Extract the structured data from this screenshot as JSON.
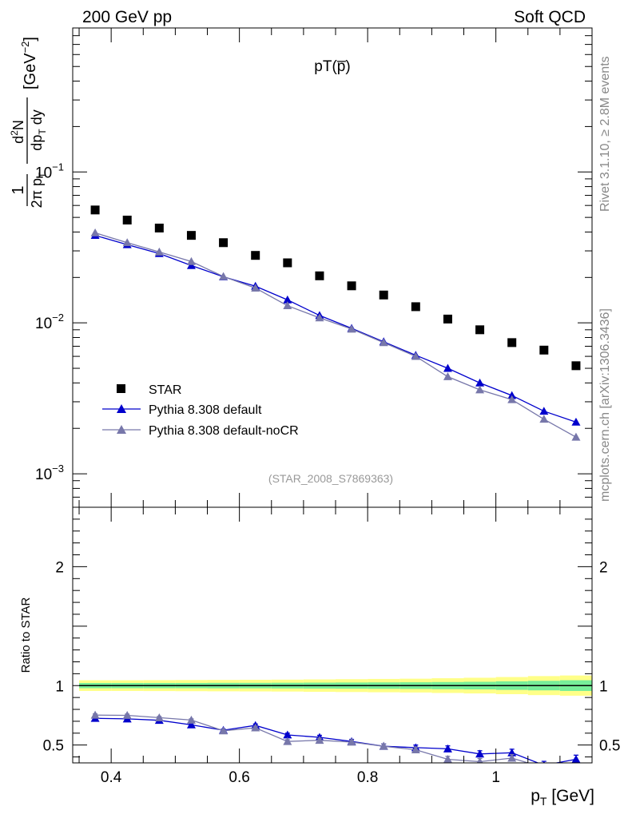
{
  "header": {
    "left": "200 GeV pp",
    "right": "Soft QCD"
  },
  "side_labels": {
    "rivet": "Rivet 3.1.10, ≥ 2.8M events",
    "mcplots": "mcplots.cern.ch [arXiv:1306.3436]"
  },
  "chart_data": [
    {
      "type": "scatter",
      "title": "pT(p̅)",
      "analysis_tag": "(STAR_2008_S7869363)",
      "ylabel": "1/(2π p_T) d²N/(dp_T dy) [GeV⁻²]",
      "xlim": [
        0.34,
        1.15
      ],
      "ylim": [
        0.0006,
        0.9
      ],
      "yscale": "log",
      "y_ticks": [
        {
          "value": 0.1,
          "base": "10",
          "exp": "−1"
        },
        {
          "value": 0.01,
          "base": "10",
          "exp": "−2"
        },
        {
          "value": 0.001,
          "base": "10",
          "exp": "−3"
        }
      ],
      "x": [
        0.375,
        0.425,
        0.475,
        0.525,
        0.575,
        0.625,
        0.675,
        0.725,
        0.775,
        0.825,
        0.875,
        0.925,
        0.975,
        1.025,
        1.075,
        1.125
      ],
      "legend_position": "bottom-left",
      "series": [
        {
          "name": "STAR",
          "marker": "square",
          "color": "#000000",
          "values": [
            0.056,
            0.048,
            0.0425,
            0.038,
            0.034,
            0.028,
            0.025,
            0.0205,
            0.0176,
            0.0153,
            0.0128,
            0.0106,
            0.009,
            0.0074,
            0.0066,
            0.0052
          ]
        },
        {
          "name": "Pythia 8.308 default",
          "marker": "triangle",
          "color": "#0000cc",
          "values": [
            0.038,
            0.033,
            0.0288,
            0.024,
            0.0202,
            0.0175,
            0.0142,
            0.0112,
            0.0092,
            0.0075,
            0.0061,
            0.005,
            0.004,
            0.0033,
            0.0026,
            0.0022
          ]
        },
        {
          "name": "Pythia 8.308 default-noCR",
          "marker": "triangle",
          "color": "#7777aa",
          "values": [
            0.0395,
            0.034,
            0.0295,
            0.0255,
            0.0203,
            0.017,
            0.013,
            0.0108,
            0.0091,
            0.0074,
            0.006,
            0.0044,
            0.0036,
            0.0031,
            0.0023,
            0.00175
          ]
        }
      ]
    },
    {
      "type": "scatter",
      "ylabel": "Ratio to STAR",
      "xlabel_base": "p",
      "xlabel_sub": "T",
      "xlabel_unit": " [GeV]",
      "xlim": [
        0.34,
        1.15
      ],
      "ylim": [
        0.35,
        2.5
      ],
      "y_ticks": [
        {
          "value": 0.5,
          "label": "0.5"
        },
        {
          "value": 1,
          "label": "1"
        },
        {
          "value": 2,
          "label": "2"
        }
      ],
      "x_ticks": [
        {
          "value": 0.4,
          "label": "0.4"
        },
        {
          "value": 0.6,
          "label": "0.6"
        },
        {
          "value": 0.8,
          "label": "0.8"
        },
        {
          "value": 1.0,
          "label": "1"
        }
      ],
      "x": [
        0.375,
        0.425,
        0.475,
        0.525,
        0.575,
        0.625,
        0.675,
        0.725,
        0.775,
        0.825,
        0.875,
        0.925,
        0.975,
        1.025,
        1.075,
        1.125
      ],
      "uncertainty_band": {
        "stat_color": "#77ee99",
        "total_color": "#ffff88",
        "stat_halfwidth": [
          0.022,
          0.022,
          0.022,
          0.022,
          0.023,
          0.023,
          0.024,
          0.025,
          0.026,
          0.027,
          0.028,
          0.03,
          0.032,
          0.036,
          0.04,
          0.045
        ],
        "total_halfwidth": [
          0.045,
          0.045,
          0.046,
          0.047,
          0.048,
          0.049,
          0.05,
          0.052,
          0.054,
          0.056,
          0.058,
          0.062,
          0.066,
          0.072,
          0.08,
          0.085
        ]
      },
      "series": [
        {
          "name": "Pythia 8.308 default",
          "color": "#0000cc",
          "values": [
            0.725,
            0.72,
            0.708,
            0.67,
            0.625,
            0.665,
            0.585,
            0.565,
            0.53,
            0.49,
            0.478,
            0.468,
            0.425,
            0.435,
            0.33,
            0.38
          ],
          "errors": [
            0.01,
            0.01,
            0.01,
            0.01,
            0.01,
            0.012,
            0.015,
            0.017,
            0.018,
            0.02,
            0.022,
            0.025,
            0.027,
            0.03,
            0.033,
            0.035
          ]
        },
        {
          "name": "Pythia 8.308 default-noCR",
          "color": "#7777aa",
          "values": [
            0.752,
            0.75,
            0.73,
            0.71,
            0.62,
            0.645,
            0.53,
            0.54,
            0.525,
            0.49,
            0.46,
            0.38,
            0.36,
            0.39,
            0.31,
            0.3
          ],
          "errors": [
            0.01,
            0.01,
            0.01,
            0.01,
            0.01,
            0.012,
            0.015,
            0.017,
            0.018,
            0.02,
            0.022,
            0.025,
            0.027,
            0.03,
            0.033,
            0.035
          ]
        }
      ]
    }
  ]
}
